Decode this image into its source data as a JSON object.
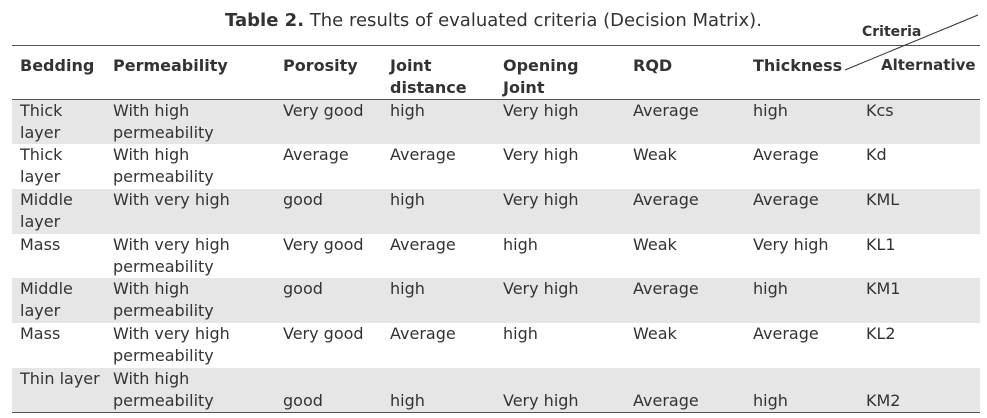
{
  "header": {
    "label": "Table 2.",
    "title": "The results of evaluated criteria (Decision Matrix)."
  },
  "table": {
    "columns": [
      "Bedding",
      "Permeability",
      "Porosity",
      "Joint distance",
      "Opening Joint",
      "RQD",
      "Thickness"
    ],
    "criteria_label": "Criteria",
    "alternative_label": "Alternative",
    "rows": [
      [
        "Thick layer",
        "With high permeability",
        "Very good",
        "high",
        "Very high",
        "Average",
        "high",
        "Kcs"
      ],
      [
        "Thick layer",
        "With high permeability",
        "Average",
        "Average",
        "Very high",
        "Weak",
        "Average",
        "Kd"
      ],
      [
        "Middle layer",
        "With very high",
        "good",
        "high",
        "Very high",
        "Average",
        "Average",
        "KML"
      ],
      [
        "Mass",
        "With very high permeability",
        "Very good",
        "Average",
        "high",
        "Weak",
        "Very high",
        "KL1"
      ],
      [
        "Middle layer",
        "With high permeability",
        "good",
        "high",
        "Very high",
        "Average",
        "high",
        "KM1"
      ],
      [
        "Mass",
        "With very high permeability",
        "Very good",
        "Average",
        "high",
        "Weak",
        "Average",
        "KL2"
      ],
      [
        "Thin layer",
        "With high permeability",
        "good",
        "high",
        "Very high",
        "Average",
        "high",
        "KM2"
      ]
    ]
  }
}
